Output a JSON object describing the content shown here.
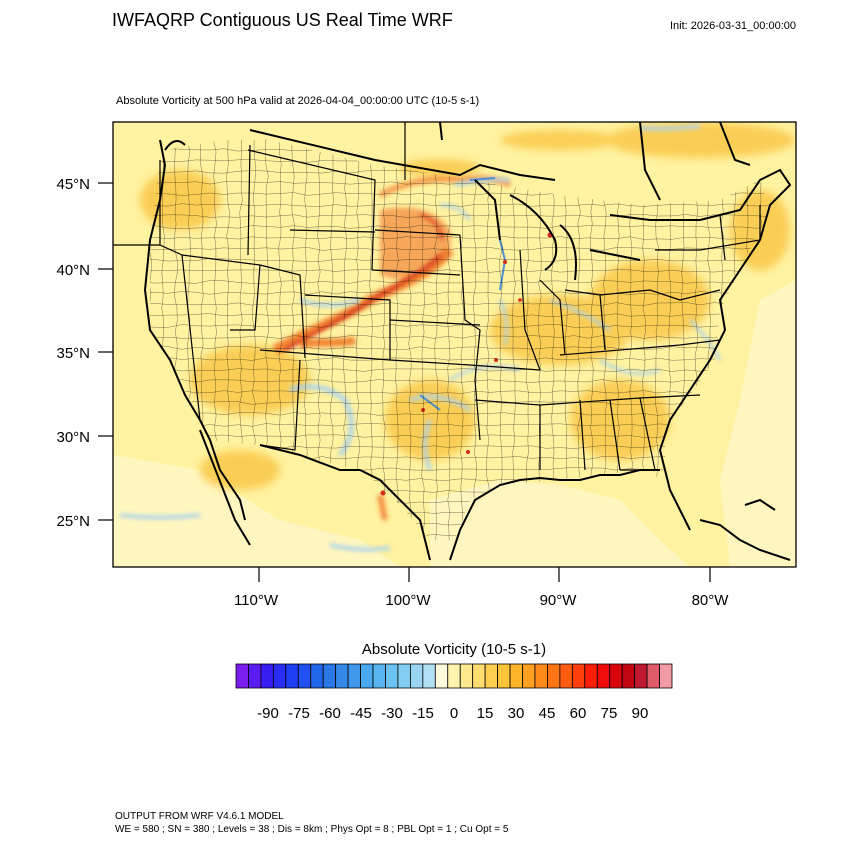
{
  "title": "IWFAQRP Contiguous US Real Time WRF",
  "init": "Init: 2026-03-31_00:00:00",
  "subtitle": "Absolute Vorticity at 500 hPa valid at 2026-04-04_00:00:00 UTC   (10-5 s-1)",
  "map": {
    "lat_labels": [
      "45°N",
      "40°N",
      "35°N",
      "30°N",
      "25°N"
    ],
    "lon_labels": [
      "110°W",
      "100°W",
      "90°W",
      "80°W"
    ],
    "field_colors": {
      "background": "#fff2a0",
      "ocean": "#fff6bf",
      "positive_mid": "#f9c23c",
      "positive_high": "#ee6a1c",
      "positive_max": "#d62a1a",
      "negative": "#a9d2ef",
      "negative_strong": "#3f87d9",
      "borders": "#000000"
    }
  },
  "colorbar": {
    "title": "Absolute Vorticity  (10-5 s-1)",
    "labels": [
      "-90",
      "-75",
      "-60",
      "-45",
      "-30",
      "-15",
      "0",
      "15",
      "30",
      "45",
      "60",
      "75",
      "90"
    ],
    "colors": [
      "#7a1ef0",
      "#5a1cf0",
      "#3a1df2",
      "#2a2ef5",
      "#1f3ff5",
      "#1f52f0",
      "#2266e8",
      "#2a78e6",
      "#3388e8",
      "#3f98ec",
      "#4aa8ef",
      "#5ab6f0",
      "#6cc3f2",
      "#82cdf2",
      "#9ad6f2",
      "#b2e0f4",
      "#fffadc",
      "#fff3b0",
      "#ffe98f",
      "#ffdd6e",
      "#ffd050",
      "#ffc43a",
      "#ffb52a",
      "#ffa020",
      "#ff8a1a",
      "#ff7414",
      "#ff5c10",
      "#ff3e0c",
      "#ff1f08",
      "#f00c08",
      "#d8060a",
      "#c0060e",
      "#c01830",
      "#e05a6a",
      "#f39aa4"
    ]
  },
  "footer": {
    "line1": "OUTPUT FROM WRF V4.6.1 MODEL",
    "line2": "WE = 580 ; SN = 380 ; Levels = 38 ; Dis = 8km ; Phys Opt = 8 ; PBL Opt = 1 ; Cu Opt = 5"
  }
}
